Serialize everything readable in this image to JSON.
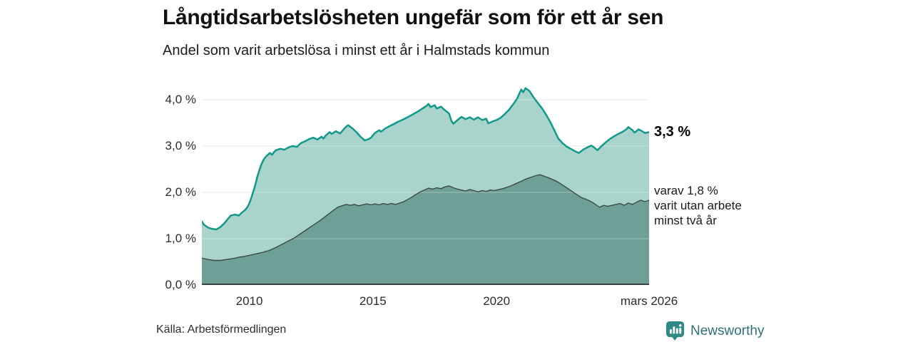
{
  "header": {
    "title": "Långtidsarbetslösheten ungefär som för ett år sen",
    "subtitle": "Andel som varit arbetslösa i minst ett år i Halmstads kommun"
  },
  "footer": {
    "source": "Källa: Arbetsförmedlingen",
    "brand": "Newsworthy",
    "brand_icon": "newsworthy-pin-barchart-icon",
    "brand_color": "#2f8a85",
    "brand_text_color": "#2f707a"
  },
  "chart_data": {
    "type": "area",
    "title": "Långtidsarbetslösheten ungefär som för ett år sen",
    "subtitle": "Andel som varit arbetslösa i minst ett år i Halmstads kommun",
    "unit": "%",
    "grid": "horizontal",
    "legend_position": "right-annotations",
    "x_axis": {
      "range": [
        2008.08,
        2026.17
      ],
      "ticks": [
        {
          "value": 2010,
          "label": "2010"
        },
        {
          "value": 2015,
          "label": "2015"
        },
        {
          "value": 2020,
          "label": "2020"
        },
        {
          "value": 2026.17,
          "label": "mars 2026"
        }
      ]
    },
    "y_axis": {
      "range": [
        0,
        4.46
      ],
      "ticks": [
        {
          "value": 0,
          "label": "0,0 %"
        },
        {
          "value": 1,
          "label": "1,0 %"
        },
        {
          "value": 2,
          "label": "2,0 %"
        },
        {
          "value": 3,
          "label": "3,0 %"
        },
        {
          "value": 4,
          "label": "4,0 %"
        }
      ]
    },
    "colors": {
      "grid": "#dcdfe2",
      "grid_overlay": "rgba(255,255,255,0.35)",
      "axis": "#3a4442"
    },
    "annotations": [
      {
        "lines": [
          "3,3 %"
        ],
        "anchor_value": 3.3,
        "style": "bold",
        "align": "middle"
      },
      {
        "lines": [
          "varav 1,8 %",
          "varit utan arbete",
          "minst två år"
        ],
        "anchor_value": 2.2,
        "style": "regular",
        "align": "top"
      }
    ],
    "series": [
      {
        "name": "Andel arbetslösa minst ett år",
        "latest_label": "3,3 %",
        "line_color": "#12998a",
        "fill_color": "#a9d4cc",
        "line_width": 2.5,
        "points": [
          [
            2008.08,
            1.37
          ],
          [
            2008.17,
            1.3
          ],
          [
            2008.33,
            1.24
          ],
          [
            2008.5,
            1.21
          ],
          [
            2008.67,
            1.2
          ],
          [
            2008.83,
            1.25
          ],
          [
            2009.0,
            1.34
          ],
          [
            2009.17,
            1.45
          ],
          [
            2009.25,
            1.5
          ],
          [
            2009.42,
            1.52
          ],
          [
            2009.58,
            1.5
          ],
          [
            2009.67,
            1.55
          ],
          [
            2009.83,
            1.62
          ],
          [
            2009.92,
            1.68
          ],
          [
            2010.0,
            1.76
          ],
          [
            2010.08,
            1.88
          ],
          [
            2010.17,
            2.03
          ],
          [
            2010.25,
            2.18
          ],
          [
            2010.33,
            2.35
          ],
          [
            2010.42,
            2.5
          ],
          [
            2010.5,
            2.62
          ],
          [
            2010.58,
            2.71
          ],
          [
            2010.67,
            2.77
          ],
          [
            2010.75,
            2.81
          ],
          [
            2010.83,
            2.85
          ],
          [
            2010.92,
            2.81
          ],
          [
            2011.0,
            2.87
          ],
          [
            2011.08,
            2.91
          ],
          [
            2011.25,
            2.94
          ],
          [
            2011.42,
            2.92
          ],
          [
            2011.58,
            2.97
          ],
          [
            2011.75,
            3.0
          ],
          [
            2011.92,
            2.98
          ],
          [
            2012.08,
            3.06
          ],
          [
            2012.25,
            3.1
          ],
          [
            2012.42,
            3.15
          ],
          [
            2012.58,
            3.18
          ],
          [
            2012.75,
            3.14
          ],
          [
            2012.92,
            3.2
          ],
          [
            2013.0,
            3.16
          ],
          [
            2013.08,
            3.22
          ],
          [
            2013.25,
            3.3
          ],
          [
            2013.33,
            3.26
          ],
          [
            2013.5,
            3.32
          ],
          [
            2013.67,
            3.27
          ],
          [
            2013.83,
            3.37
          ],
          [
            2013.92,
            3.42
          ],
          [
            2014.0,
            3.45
          ],
          [
            2014.17,
            3.38
          ],
          [
            2014.33,
            3.3
          ],
          [
            2014.5,
            3.2
          ],
          [
            2014.67,
            3.12
          ],
          [
            2014.83,
            3.15
          ],
          [
            2014.92,
            3.18
          ],
          [
            2015.08,
            3.28
          ],
          [
            2015.25,
            3.34
          ],
          [
            2015.33,
            3.31
          ],
          [
            2015.5,
            3.38
          ],
          [
            2015.67,
            3.43
          ],
          [
            2015.83,
            3.47
          ],
          [
            2016.0,
            3.52
          ],
          [
            2016.17,
            3.56
          ],
          [
            2016.33,
            3.6
          ],
          [
            2016.5,
            3.65
          ],
          [
            2016.67,
            3.7
          ],
          [
            2016.83,
            3.75
          ],
          [
            2017.0,
            3.81
          ],
          [
            2017.17,
            3.87
          ],
          [
            2017.25,
            3.91
          ],
          [
            2017.33,
            3.84
          ],
          [
            2017.5,
            3.88
          ],
          [
            2017.58,
            3.81
          ],
          [
            2017.75,
            3.85
          ],
          [
            2017.92,
            3.77
          ],
          [
            2018.08,
            3.7
          ],
          [
            2018.17,
            3.55
          ],
          [
            2018.25,
            3.48
          ],
          [
            2018.42,
            3.56
          ],
          [
            2018.58,
            3.63
          ],
          [
            2018.75,
            3.58
          ],
          [
            2018.92,
            3.62
          ],
          [
            2019.08,
            3.57
          ],
          [
            2019.25,
            3.62
          ],
          [
            2019.42,
            3.56
          ],
          [
            2019.58,
            3.59
          ],
          [
            2019.67,
            3.49
          ],
          [
            2019.83,
            3.53
          ],
          [
            2020.0,
            3.56
          ],
          [
            2020.17,
            3.61
          ],
          [
            2020.33,
            3.69
          ],
          [
            2020.5,
            3.78
          ],
          [
            2020.67,
            3.9
          ],
          [
            2020.83,
            4.02
          ],
          [
            2020.92,
            4.13
          ],
          [
            2021.0,
            4.22
          ],
          [
            2021.08,
            4.16
          ],
          [
            2021.17,
            4.25
          ],
          [
            2021.33,
            4.19
          ],
          [
            2021.5,
            4.05
          ],
          [
            2021.67,
            3.93
          ],
          [
            2021.83,
            3.82
          ],
          [
            2022.0,
            3.68
          ],
          [
            2022.17,
            3.52
          ],
          [
            2022.33,
            3.35
          ],
          [
            2022.5,
            3.16
          ],
          [
            2022.67,
            3.06
          ],
          [
            2022.83,
            2.99
          ],
          [
            2023.0,
            2.94
          ],
          [
            2023.17,
            2.89
          ],
          [
            2023.33,
            2.85
          ],
          [
            2023.5,
            2.92
          ],
          [
            2023.67,
            2.97
          ],
          [
            2023.83,
            3.01
          ],
          [
            2023.92,
            2.98
          ],
          [
            2024.08,
            2.91
          ],
          [
            2024.25,
            3.0
          ],
          [
            2024.42,
            3.08
          ],
          [
            2024.58,
            3.15
          ],
          [
            2024.75,
            3.21
          ],
          [
            2024.92,
            3.26
          ],
          [
            2025.08,
            3.3
          ],
          [
            2025.25,
            3.36
          ],
          [
            2025.33,
            3.41
          ],
          [
            2025.5,
            3.34
          ],
          [
            2025.58,
            3.29
          ],
          [
            2025.75,
            3.36
          ],
          [
            2025.92,
            3.31
          ],
          [
            2026.0,
            3.28
          ],
          [
            2026.17,
            3.3
          ]
        ]
      },
      {
        "name": "Varav utan arbete minst två år",
        "latest_label": "1,8 %",
        "line_color": "#3b4a46",
        "fill_color": "#6fa098",
        "line_width": 1.4,
        "points": [
          [
            2008.08,
            0.58
          ],
          [
            2008.33,
            0.55
          ],
          [
            2008.58,
            0.53
          ],
          [
            2008.83,
            0.53
          ],
          [
            2009.08,
            0.55
          ],
          [
            2009.33,
            0.57
          ],
          [
            2009.58,
            0.6
          ],
          [
            2009.83,
            0.62
          ],
          [
            2010.08,
            0.65
          ],
          [
            2010.33,
            0.68
          ],
          [
            2010.58,
            0.71
          ],
          [
            2010.83,
            0.75
          ],
          [
            2011.08,
            0.81
          ],
          [
            2011.33,
            0.88
          ],
          [
            2011.58,
            0.95
          ],
          [
            2011.83,
            1.02
          ],
          [
            2012.08,
            1.11
          ],
          [
            2012.33,
            1.2
          ],
          [
            2012.58,
            1.29
          ],
          [
            2012.83,
            1.38
          ],
          [
            2013.08,
            1.48
          ],
          [
            2013.25,
            1.55
          ],
          [
            2013.42,
            1.62
          ],
          [
            2013.58,
            1.68
          ],
          [
            2013.75,
            1.71
          ],
          [
            2013.92,
            1.74
          ],
          [
            2014.08,
            1.72
          ],
          [
            2014.25,
            1.74
          ],
          [
            2014.42,
            1.71
          ],
          [
            2014.58,
            1.73
          ],
          [
            2014.75,
            1.75
          ],
          [
            2014.92,
            1.73
          ],
          [
            2015.08,
            1.75
          ],
          [
            2015.25,
            1.73
          ],
          [
            2015.42,
            1.76
          ],
          [
            2015.58,
            1.74
          ],
          [
            2015.75,
            1.76
          ],
          [
            2015.92,
            1.74
          ],
          [
            2016.08,
            1.77
          ],
          [
            2016.25,
            1.8
          ],
          [
            2016.42,
            1.85
          ],
          [
            2016.58,
            1.9
          ],
          [
            2016.75,
            1.96
          ],
          [
            2016.92,
            2.01
          ],
          [
            2017.08,
            2.05
          ],
          [
            2017.25,
            2.09
          ],
          [
            2017.42,
            2.07
          ],
          [
            2017.58,
            2.1
          ],
          [
            2017.75,
            2.08
          ],
          [
            2017.92,
            2.12
          ],
          [
            2018.08,
            2.14
          ],
          [
            2018.25,
            2.1
          ],
          [
            2018.42,
            2.07
          ],
          [
            2018.58,
            2.05
          ],
          [
            2018.75,
            2.03
          ],
          [
            2018.92,
            2.06
          ],
          [
            2019.08,
            2.04
          ],
          [
            2019.25,
            2.01
          ],
          [
            2019.42,
            2.04
          ],
          [
            2019.58,
            2.02
          ],
          [
            2019.75,
            2.05
          ],
          [
            2019.92,
            2.04
          ],
          [
            2020.08,
            2.06
          ],
          [
            2020.25,
            2.08
          ],
          [
            2020.42,
            2.11
          ],
          [
            2020.58,
            2.14
          ],
          [
            2020.75,
            2.18
          ],
          [
            2020.92,
            2.22
          ],
          [
            2021.08,
            2.26
          ],
          [
            2021.25,
            2.3
          ],
          [
            2021.42,
            2.33
          ],
          [
            2021.58,
            2.36
          ],
          [
            2021.75,
            2.38
          ],
          [
            2021.92,
            2.35
          ],
          [
            2022.08,
            2.32
          ],
          [
            2022.25,
            2.28
          ],
          [
            2022.42,
            2.24
          ],
          [
            2022.58,
            2.19
          ],
          [
            2022.75,
            2.13
          ],
          [
            2022.92,
            2.07
          ],
          [
            2023.08,
            2.01
          ],
          [
            2023.25,
            1.95
          ],
          [
            2023.42,
            1.89
          ],
          [
            2023.58,
            1.86
          ],
          [
            2023.75,
            1.82
          ],
          [
            2023.92,
            1.77
          ],
          [
            2024.08,
            1.71
          ],
          [
            2024.17,
            1.68
          ],
          [
            2024.33,
            1.72
          ],
          [
            2024.5,
            1.7
          ],
          [
            2024.67,
            1.72
          ],
          [
            2024.83,
            1.74
          ],
          [
            2025.0,
            1.76
          ],
          [
            2025.17,
            1.72
          ],
          [
            2025.33,
            1.77
          ],
          [
            2025.5,
            1.74
          ],
          [
            2025.67,
            1.79
          ],
          [
            2025.83,
            1.83
          ],
          [
            2026.0,
            1.8
          ],
          [
            2026.17,
            1.83
          ]
        ]
      }
    ]
  }
}
